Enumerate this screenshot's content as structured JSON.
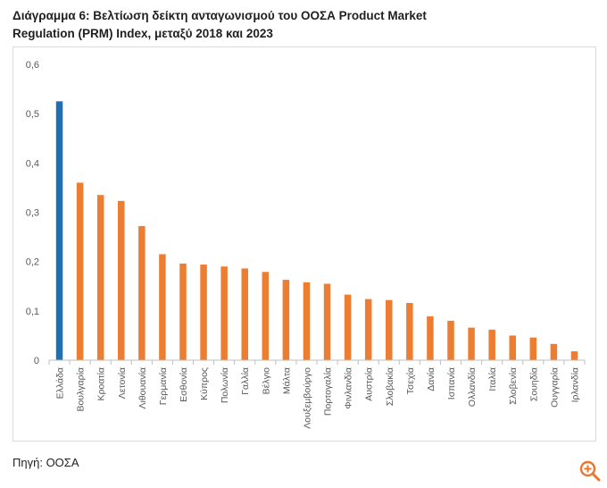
{
  "header": {
    "title_line1": "Διάγραμμα 6: Βελτίωση δείκτη ανταγωνισμού του ΟΟΣΑ Product Market",
    "title_line2": "Regulation (PRM) Index, μεταξύ 2018 και 2023"
  },
  "footer": {
    "source": "Πηγή: ΟΟΣΑ"
  },
  "icons": {
    "zoom": "zoom-in-icon"
  },
  "colors": {
    "highlight": "#1F6FB5",
    "bar": "#ED7D31",
    "axis": "#BFBFBF",
    "tick_text": "#595959",
    "zoom": "#E8772E"
  },
  "chart_data": {
    "type": "bar",
    "title": "Διάγραμμα 6: Βελτίωση δείκτη ανταγωνισμού του ΟΟΣΑ Product Market Regulation (PRM) Index, μεταξύ 2018 και 2023",
    "xlabel": "",
    "ylabel": "",
    "ylim": [
      0,
      0.6
    ],
    "yticks": [
      0,
      0.1,
      0.2,
      0.3,
      0.4,
      0.5,
      0.6
    ],
    "ytick_labels": [
      "0",
      "0,1",
      "0,2",
      "0,3",
      "0,4",
      "0,5",
      "0,6"
    ],
    "grid": false,
    "legend": "none",
    "highlight_category": "Ελλάδα",
    "categories": [
      "Ελλάδα",
      "Βουλγαρία",
      "Κροατία",
      "Λετονία",
      "Λιθουανία",
      "Γερμανία",
      "Εσθονία",
      "Κύπρος",
      "Πολωνία",
      "Γαλλία",
      "Βέλγιο",
      "Μάλτα",
      "Λουξεμβούργο",
      "Πορτογαλία",
      "Φινλανδία",
      "Αυστρία",
      "Σλοβακία",
      "Τσεχία",
      "Δανία",
      "Ισπανία",
      "Ολλανδία",
      "Ιταλία",
      "Σλοβενία",
      "Σουηδία",
      "Ουγγαρία",
      "Ιρλανδία"
    ],
    "values": [
      0.525,
      0.36,
      0.335,
      0.323,
      0.272,
      0.215,
      0.196,
      0.194,
      0.19,
      0.186,
      0.179,
      0.163,
      0.158,
      0.155,
      0.133,
      0.124,
      0.122,
      0.116,
      0.089,
      0.08,
      0.066,
      0.062,
      0.05,
      0.046,
      0.033,
      0.018
    ]
  }
}
